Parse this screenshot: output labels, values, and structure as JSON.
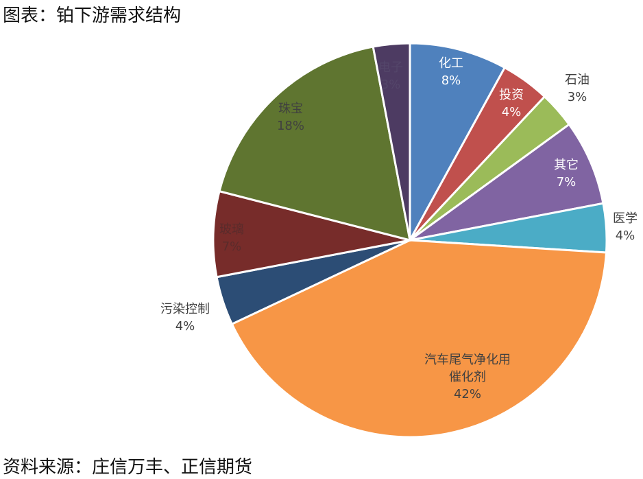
{
  "title": "图表：铂下游需求结构",
  "source": "资料来源：庄信万丰、正信期货",
  "chart_data": {
    "type": "pie",
    "start": "top",
    "direction": "clockwise",
    "slices": [
      {
        "label": "化工",
        "value": 8,
        "pct": "8%",
        "color": "#4f81bd"
      },
      {
        "label": "投资",
        "value": 4,
        "pct": "4%",
        "color": "#c0504d"
      },
      {
        "label": "石油",
        "value": 3,
        "pct": "3%",
        "color": "#9bbb59"
      },
      {
        "label": "其它",
        "value": 7,
        "pct": "7%",
        "color": "#8064a2"
      },
      {
        "label": "医学",
        "value": 4,
        "pct": "4%",
        "color": "#4bacc6"
      },
      {
        "label": "汽车尾气净化用催化剂",
        "value": 42,
        "pct": "42%",
        "color": "#f79646"
      },
      {
        "label": "污染控制",
        "value": 4,
        "pct": "4%",
        "color": "#2c4d75"
      },
      {
        "label": "玻璃",
        "value": 7,
        "pct": "7%",
        "color": "#772c2a"
      },
      {
        "label": "珠宝",
        "value": 18,
        "pct": "18%",
        "color": "#5f7530"
      },
      {
        "label": "电子",
        "value": 3,
        "pct": "3%",
        "color": "#4d3b62"
      }
    ]
  }
}
